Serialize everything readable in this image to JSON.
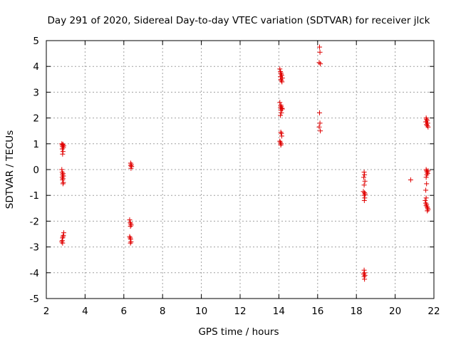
{
  "chart_data": {
    "type": "scatter",
    "title": "Day 291 of 2020, Sidereal Day-to-day VTEC variation (SDTVAR) for receiver jlck",
    "xlabel": "GPS time / hours",
    "ylabel": "SDTVAR / TECUs",
    "xlim": [
      2,
      22
    ],
    "ylim": [
      -5,
      5
    ],
    "xticks": [
      2,
      4,
      6,
      8,
      10,
      12,
      14,
      16,
      18,
      20,
      22
    ],
    "yticks": [
      -5,
      -4,
      -3,
      -2,
      -1,
      0,
      1,
      2,
      3,
      4,
      5
    ],
    "grid": true,
    "marker": "+",
    "color": "#e00000",
    "series": [
      {
        "name": "SDTVAR",
        "points": [
          [
            2.8,
            1.0
          ],
          [
            2.82,
            0.95
          ],
          [
            2.84,
            0.9
          ],
          [
            2.86,
            0.98
          ],
          [
            2.88,
            0.85
          ],
          [
            2.9,
            0.92
          ],
          [
            2.82,
            0.8
          ],
          [
            2.86,
            0.7
          ],
          [
            2.84,
            0.6
          ],
          [
            2.8,
            0.0
          ],
          [
            2.82,
            -0.1
          ],
          [
            2.86,
            -0.15
          ],
          [
            2.84,
            -0.2
          ],
          [
            2.88,
            -0.25
          ],
          [
            2.82,
            -0.3
          ],
          [
            2.86,
            -0.35
          ],
          [
            2.84,
            -0.4
          ],
          [
            2.88,
            -0.5
          ],
          [
            2.86,
            -0.55
          ],
          [
            2.9,
            -2.45
          ],
          [
            2.88,
            -2.55
          ],
          [
            2.86,
            -2.6
          ],
          [
            2.84,
            -2.65
          ],
          [
            2.82,
            -2.75
          ],
          [
            2.8,
            -2.8
          ],
          [
            2.84,
            -2.85
          ],
          [
            6.35,
            0.25
          ],
          [
            6.38,
            0.2
          ],
          [
            6.36,
            0.15
          ],
          [
            6.4,
            0.12
          ],
          [
            6.37,
            0.05
          ],
          [
            6.3,
            -1.95
          ],
          [
            6.33,
            -2.05
          ],
          [
            6.35,
            -2.1
          ],
          [
            6.38,
            -2.15
          ],
          [
            6.34,
            -2.2
          ],
          [
            6.3,
            -2.6
          ],
          [
            6.33,
            -2.65
          ],
          [
            6.35,
            -2.7
          ],
          [
            6.37,
            -2.8
          ],
          [
            6.34,
            -2.85
          ],
          [
            14.05,
            3.9
          ],
          [
            14.08,
            3.8
          ],
          [
            14.1,
            3.75
          ],
          [
            14.12,
            3.7
          ],
          [
            14.15,
            3.65
          ],
          [
            14.08,
            3.6
          ],
          [
            14.18,
            3.55
          ],
          [
            14.1,
            3.5
          ],
          [
            14.13,
            3.45
          ],
          [
            14.16,
            3.4
          ],
          [
            14.05,
            2.6
          ],
          [
            14.1,
            2.5
          ],
          [
            14.12,
            2.45
          ],
          [
            14.08,
            2.4
          ],
          [
            14.15,
            2.38
          ],
          [
            14.18,
            2.35
          ],
          [
            14.1,
            2.3
          ],
          [
            14.13,
            2.2
          ],
          [
            14.08,
            2.1
          ],
          [
            14.1,
            1.45
          ],
          [
            14.13,
            1.4
          ],
          [
            14.15,
            1.3
          ],
          [
            14.05,
            1.1
          ],
          [
            14.08,
            1.05
          ],
          [
            14.12,
            1.0
          ],
          [
            14.1,
            0.95
          ],
          [
            16.1,
            4.75
          ],
          [
            16.12,
            4.55
          ],
          [
            16.08,
            4.15
          ],
          [
            16.14,
            4.1
          ],
          [
            16.1,
            2.2
          ],
          [
            16.12,
            1.8
          ],
          [
            16.08,
            1.65
          ],
          [
            16.14,
            1.5
          ],
          [
            18.4,
            -0.1
          ],
          [
            18.42,
            -0.2
          ],
          [
            18.38,
            -0.3
          ],
          [
            18.44,
            -0.45
          ],
          [
            18.4,
            -0.6
          ],
          [
            18.36,
            -0.85
          ],
          [
            18.42,
            -0.9
          ],
          [
            18.45,
            -0.95
          ],
          [
            18.4,
            -1.0
          ],
          [
            18.43,
            -1.1
          ],
          [
            18.41,
            -1.2
          ],
          [
            18.4,
            -3.9
          ],
          [
            18.42,
            -4.0
          ],
          [
            18.38,
            -4.05
          ],
          [
            18.44,
            -4.1
          ],
          [
            18.4,
            -4.15
          ],
          [
            18.42,
            -4.25
          ],
          [
            20.8,
            -0.4
          ],
          [
            21.6,
            2.0
          ],
          [
            21.62,
            1.95
          ],
          [
            21.65,
            1.9
          ],
          [
            21.58,
            1.85
          ],
          [
            21.68,
            1.8
          ],
          [
            21.62,
            1.75
          ],
          [
            21.65,
            1.7
          ],
          [
            21.7,
            1.65
          ],
          [
            21.6,
            0.0
          ],
          [
            21.62,
            -0.05
          ],
          [
            21.65,
            -0.1
          ],
          [
            21.68,
            -0.15
          ],
          [
            21.7,
            -0.05
          ],
          [
            21.63,
            -0.2
          ],
          [
            21.6,
            -0.3
          ],
          [
            21.62,
            -0.55
          ],
          [
            21.58,
            -0.8
          ],
          [
            21.6,
            -1.1
          ],
          [
            21.55,
            -1.2
          ],
          [
            21.58,
            -1.3
          ],
          [
            21.62,
            -1.35
          ],
          [
            21.6,
            -1.4
          ],
          [
            21.65,
            -1.45
          ],
          [
            21.68,
            -1.5
          ],
          [
            21.7,
            -1.55
          ],
          [
            21.66,
            -1.6
          ]
        ]
      }
    ]
  }
}
